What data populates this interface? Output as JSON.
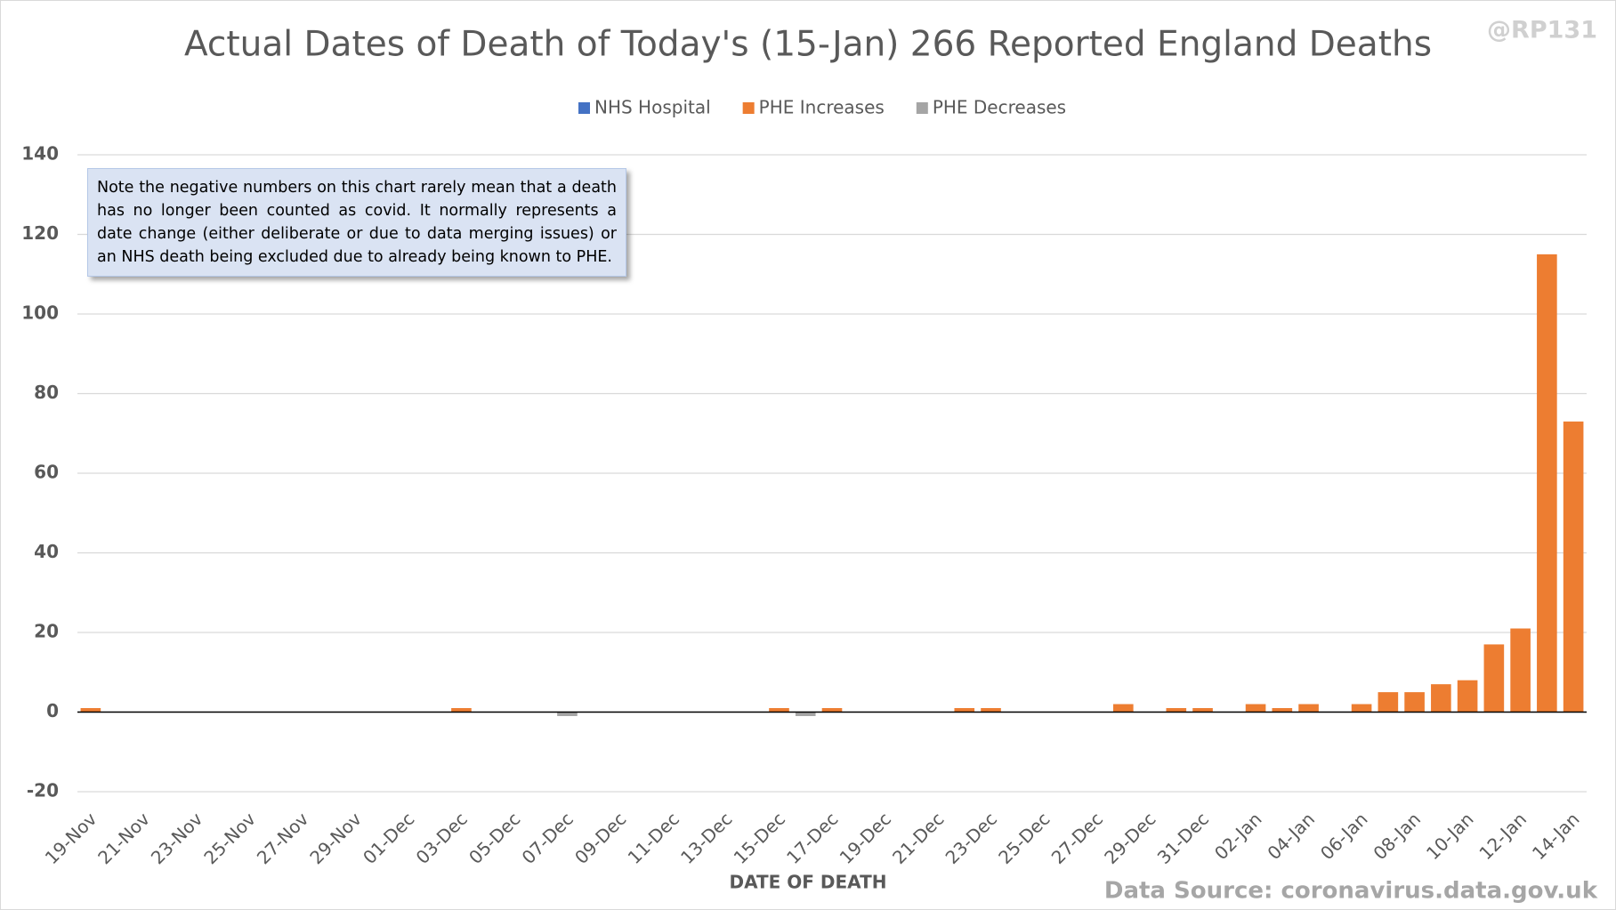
{
  "chart_data": {
    "type": "bar",
    "stacked": true,
    "title": "Actual Dates of Death of Today's (15-Jan) 266 Reported England Deaths",
    "watermark": "@RP131",
    "note": "Note the negative numbers on this chart rarely mean that a death has no longer been counted as covid. It normally represents a date change (either deliberate or due to data merging issues) or an NHS death being excluded due to already being known to PHE.",
    "x_label": "DATE OF DEATH",
    "source": "Data Source: coronavirus.data.gov.uk",
    "legend": "top",
    "grid": true,
    "categories": [
      "19-Nov",
      null,
      "21-Nov",
      null,
      "23-Nov",
      null,
      "25-Nov",
      null,
      "27-Nov",
      null,
      "29-Nov",
      null,
      "01-Dec",
      null,
      "03-Dec",
      null,
      "05-Dec",
      null,
      "07-Dec",
      null,
      "09-Dec",
      null,
      "11-Dec",
      null,
      "13-Dec",
      null,
      "15-Dec",
      null,
      "17-Dec",
      null,
      "19-Dec",
      null,
      "21-Dec",
      null,
      "23-Dec",
      null,
      "25-Dec",
      null,
      "27-Dec",
      null,
      "29-Dec",
      null,
      "31-Dec",
      null,
      "02-Jan",
      null,
      "04-Jan",
      null,
      "06-Jan",
      null,
      "08-Jan",
      null,
      "10-Jan",
      null,
      "12-Jan",
      null,
      "14-Jan"
    ],
    "series": [
      {
        "name": "NHS Hospital",
        "color": "#4472c4",
        "values": [
          0,
          0,
          0,
          0,
          0,
          0,
          0,
          0,
          0,
          0,
          0,
          0,
          0,
          0,
          0,
          0,
          0,
          0,
          0,
          0,
          0,
          0,
          0,
          0,
          0,
          0,
          0,
          0,
          0,
          0,
          0,
          0,
          0,
          0,
          0,
          0,
          0,
          0,
          0,
          0,
          0,
          0,
          0,
          0,
          0,
          0,
          0,
          0,
          0,
          0,
          0,
          0,
          0,
          0,
          0,
          0,
          0
        ]
      },
      {
        "name": "PHE Increases",
        "color": "#ed7d31",
        "values": [
          1,
          0,
          0,
          0,
          0,
          0,
          0,
          0,
          0,
          0,
          0,
          0,
          0,
          0,
          1,
          0,
          0,
          0,
          0,
          0,
          0,
          0,
          0,
          0,
          0,
          0,
          1,
          0,
          1,
          0,
          0,
          0,
          0,
          1,
          1,
          0,
          0,
          0,
          0,
          2,
          0,
          1,
          1,
          0,
          2,
          1,
          2,
          0,
          2,
          5,
          5,
          7,
          8,
          17,
          21,
          115,
          73
        ]
      },
      {
        "name": "PHE Decreases",
        "color": "#a5a5a5",
        "values": [
          0,
          0,
          0,
          0,
          0,
          0,
          0,
          0,
          0,
          0,
          0,
          0,
          0,
          0,
          0,
          0,
          0,
          0,
          -1,
          0,
          0,
          0,
          0,
          0,
          0,
          0,
          0,
          -1,
          0,
          0,
          0,
          0,
          0,
          0,
          0,
          0,
          0,
          0,
          0,
          0,
          0,
          0,
          0,
          0,
          0,
          0,
          0,
          0,
          0,
          0,
          0,
          0,
          0,
          0,
          0,
          0,
          0
        ]
      }
    ],
    "ylim": [
      -20,
      140
    ],
    "yticks": [
      -20,
      0,
      20,
      40,
      60,
      80,
      100,
      120,
      140
    ]
  }
}
